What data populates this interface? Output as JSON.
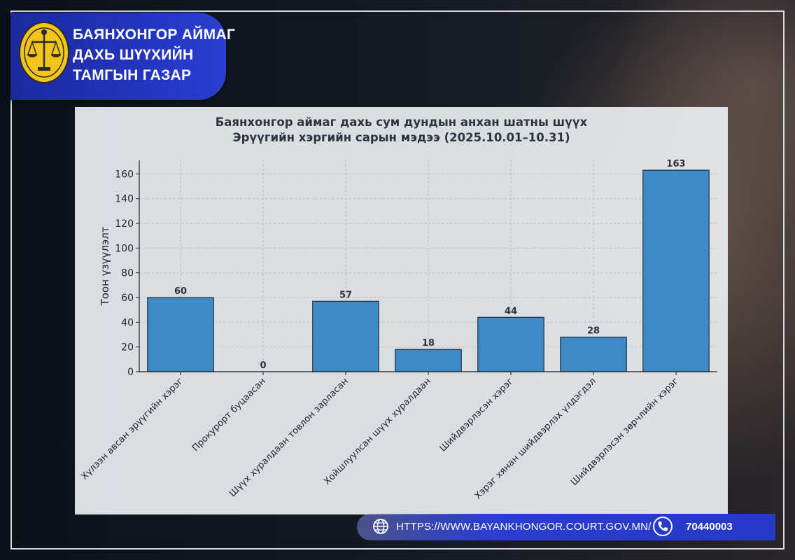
{
  "header": {
    "org_lines": [
      "БАЯНХОНГОР АЙМАГ",
      "ДАХЬ ШҮҮХИЙН",
      "ТАМГЫН ГАЗАР"
    ],
    "emblem": "scales-of-justice-emblem-icon"
  },
  "colors": {
    "bar": "#3d8ac7",
    "bar_edge": "#1f2f40",
    "panel": "#ebedf0",
    "header_blue": "#2436c4"
  },
  "footer": {
    "url": "HTTPS://WWW.BAYANKHONGOR.COURT.GOV.MN/",
    "phone": "70440003",
    "icons": [
      "globe-icon",
      "phone-icon"
    ]
  },
  "chart_data": {
    "type": "bar",
    "title_lines": [
      "Баянхонгор аймаг дахь сум дундын анхан шатны шүүх",
      "Эрүүгийн хэргийн сарын мэдээ (2025.10.01–10.31)"
    ],
    "ylabel": "Тоон үзүүлэлт",
    "xlabel": "",
    "categories": [
      "Хүлээн авсан эрүүгийн хэрэг",
      "Прокурорт буцаасан",
      "Шүүх хуралдаан товлон зарласан",
      "Хойшлуулсан шүүх хуралдаан",
      "Шийдвэрлэсэн хэрэг",
      "Хэрэг хянан шийдвэрлэх үлдэгдэл",
      "Шийдвэрлэсэн зөрчлийн хэрэг"
    ],
    "values": [
      60,
      0,
      57,
      18,
      44,
      28,
      163
    ],
    "ylim": [
      0,
      171
    ],
    "yticks": [
      0,
      20,
      40,
      60,
      80,
      100,
      120,
      140,
      160
    ],
    "grid": true,
    "data_labels": true
  }
}
